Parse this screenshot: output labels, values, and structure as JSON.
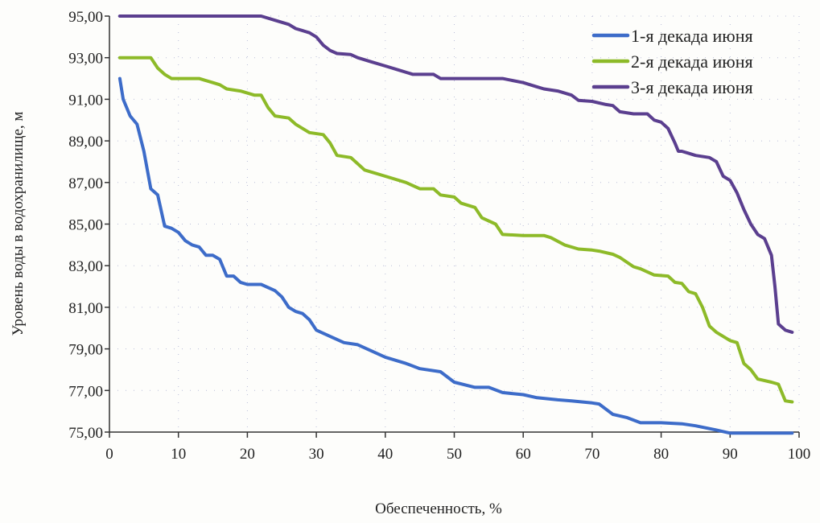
{
  "chart_data": {
    "type": "line",
    "title": "",
    "xlabel": "Обеспеченность, %",
    "ylabel": "Уровень воды в водохранилище, м",
    "xlim": [
      0,
      100
    ],
    "ylim": [
      75,
      95
    ],
    "xticks": [
      "0",
      "10",
      "20",
      "30",
      "40",
      "50",
      "60",
      "70",
      "80",
      "90",
      "100"
    ],
    "xtick_values": [
      0,
      10,
      20,
      30,
      40,
      50,
      60,
      70,
      80,
      90,
      100
    ],
    "yticks": [
      "75,00",
      "77,00",
      "79,00",
      "81,00",
      "83,00",
      "85,00",
      "87,00",
      "89,00",
      "91,00",
      "93,00",
      "95,00"
    ],
    "ytick_values": [
      75,
      77,
      79,
      81,
      83,
      85,
      87,
      89,
      91,
      93,
      95
    ],
    "grid": true,
    "legend_position": "top-right",
    "series": [
      {
        "name": "1-я декада июня",
        "color": "#3d6cc9",
        "points": [
          [
            1.5,
            92
          ],
          [
            2,
            91
          ],
          [
            3,
            90.2
          ],
          [
            4,
            89.8
          ],
          [
            5,
            88.5
          ],
          [
            6,
            86.7
          ],
          [
            7,
            86.4
          ],
          [
            8,
            84.9
          ],
          [
            9,
            84.8
          ],
          [
            10,
            84.6
          ],
          [
            11,
            84.2
          ],
          [
            12,
            84.0
          ],
          [
            13,
            83.9
          ],
          [
            14,
            83.5
          ],
          [
            15,
            83.5
          ],
          [
            16,
            83.3
          ],
          [
            17,
            82.5
          ],
          [
            18,
            82.5
          ],
          [
            19,
            82.2
          ],
          [
            20,
            82.1
          ],
          [
            22,
            82.1
          ],
          [
            24,
            81.8
          ],
          [
            25,
            81.5
          ],
          [
            26,
            81.0
          ],
          [
            27,
            80.8
          ],
          [
            28,
            80.7
          ],
          [
            29,
            80.4
          ],
          [
            30,
            79.9
          ],
          [
            32,
            79.6
          ],
          [
            34,
            79.3
          ],
          [
            36,
            79.2
          ],
          [
            38,
            78.9
          ],
          [
            40,
            78.6
          ],
          [
            43,
            78.3
          ],
          [
            45,
            78.05
          ],
          [
            48,
            77.9
          ],
          [
            50,
            77.4
          ],
          [
            53,
            77.15
          ],
          [
            55,
            77.15
          ],
          [
            57,
            76.9
          ],
          [
            60,
            76.8
          ],
          [
            62,
            76.65
          ],
          [
            65,
            76.55
          ],
          [
            67,
            76.5
          ],
          [
            70,
            76.4
          ],
          [
            71,
            76.35
          ],
          [
            73,
            75.85
          ],
          [
            75,
            75.7
          ],
          [
            77,
            75.45
          ],
          [
            80,
            75.45
          ],
          [
            83,
            75.4
          ],
          [
            85,
            75.3
          ],
          [
            88,
            75.1
          ],
          [
            90,
            74.95
          ],
          [
            95,
            74.95
          ],
          [
            99,
            74.95
          ]
        ]
      },
      {
        "name": "2-я декада июня",
        "color": "#8dba28",
        "points": [
          [
            1.5,
            93
          ],
          [
            6,
            93
          ],
          [
            7,
            92.5
          ],
          [
            8,
            92.2
          ],
          [
            9,
            92
          ],
          [
            13,
            92
          ],
          [
            15,
            91.8
          ],
          [
            16,
            91.7
          ],
          [
            17,
            91.5
          ],
          [
            19,
            91.4
          ],
          [
            21,
            91.2
          ],
          [
            22,
            91.2
          ],
          [
            23,
            90.6
          ],
          [
            24,
            90.2
          ],
          [
            26,
            90.1
          ],
          [
            27,
            89.8
          ],
          [
            29,
            89.4
          ],
          [
            31,
            89.3
          ],
          [
            32,
            88.9
          ],
          [
            33,
            88.3
          ],
          [
            35,
            88.2
          ],
          [
            36,
            87.9
          ],
          [
            37,
            87.6
          ],
          [
            40,
            87.3
          ],
          [
            43,
            87.0
          ],
          [
            45,
            86.7
          ],
          [
            47,
            86.7
          ],
          [
            48,
            86.4
          ],
          [
            50,
            86.3
          ],
          [
            51,
            86.0
          ],
          [
            53,
            85.8
          ],
          [
            54,
            85.3
          ],
          [
            56,
            85.0
          ],
          [
            57,
            84.5
          ],
          [
            60,
            84.45
          ],
          [
            63,
            84.45
          ],
          [
            64,
            84.35
          ],
          [
            66,
            84.0
          ],
          [
            68,
            83.8
          ],
          [
            70,
            83.75
          ],
          [
            71,
            83.7
          ],
          [
            73,
            83.55
          ],
          [
            74,
            83.4
          ],
          [
            76,
            82.95
          ],
          [
            77,
            82.85
          ],
          [
            79,
            82.55
          ],
          [
            81,
            82.5
          ],
          [
            82,
            82.2
          ],
          [
            83,
            82.15
          ],
          [
            84,
            81.75
          ],
          [
            85,
            81.65
          ],
          [
            86,
            81.0
          ],
          [
            87,
            80.1
          ],
          [
            88,
            79.8
          ],
          [
            90,
            79.4
          ],
          [
            91,
            79.3
          ],
          [
            92,
            78.3
          ],
          [
            93,
            78.0
          ],
          [
            94,
            77.55
          ],
          [
            96,
            77.4
          ],
          [
            97,
            77.3
          ],
          [
            98,
            76.5
          ],
          [
            99,
            76.45
          ]
        ]
      },
      {
        "name": "3-я декада июня",
        "color": "#5b3f8f",
        "points": [
          [
            1.5,
            95
          ],
          [
            22,
            95
          ],
          [
            24,
            94.8
          ],
          [
            26,
            94.6
          ],
          [
            27,
            94.4
          ],
          [
            28,
            94.3
          ],
          [
            29,
            94.2
          ],
          [
            30,
            94.0
          ],
          [
            31,
            93.6
          ],
          [
            32,
            93.35
          ],
          [
            33,
            93.2
          ],
          [
            35,
            93.15
          ],
          [
            36,
            93.0
          ],
          [
            38,
            92.8
          ],
          [
            40,
            92.6
          ],
          [
            42,
            92.4
          ],
          [
            44,
            92.2
          ],
          [
            47,
            92.2
          ],
          [
            48,
            92.0
          ],
          [
            57,
            92.0
          ],
          [
            60,
            91.8
          ],
          [
            62,
            91.6
          ],
          [
            63,
            91.5
          ],
          [
            65,
            91.4
          ],
          [
            67,
            91.2
          ],
          [
            68,
            90.95
          ],
          [
            70,
            90.9
          ],
          [
            72,
            90.75
          ],
          [
            73,
            90.7
          ],
          [
            74,
            90.4
          ],
          [
            76,
            90.3
          ],
          [
            78,
            90.3
          ],
          [
            79,
            90.0
          ],
          [
            80,
            89.9
          ],
          [
            81,
            89.6
          ],
          [
            82,
            88.9
          ],
          [
            82.5,
            88.5
          ],
          [
            83,
            88.5
          ],
          [
            84,
            88.4
          ],
          [
            85,
            88.3
          ],
          [
            87,
            88.2
          ],
          [
            88,
            88.0
          ],
          [
            89,
            87.3
          ],
          [
            90,
            87.1
          ],
          [
            91,
            86.5
          ],
          [
            92,
            85.7
          ],
          [
            93,
            85.0
          ],
          [
            94,
            84.5
          ],
          [
            95,
            84.3
          ],
          [
            96,
            83.5
          ],
          [
            96.5,
            82
          ],
          [
            97,
            80.2
          ],
          [
            98,
            79.9
          ],
          [
            99,
            79.8
          ]
        ]
      }
    ]
  }
}
